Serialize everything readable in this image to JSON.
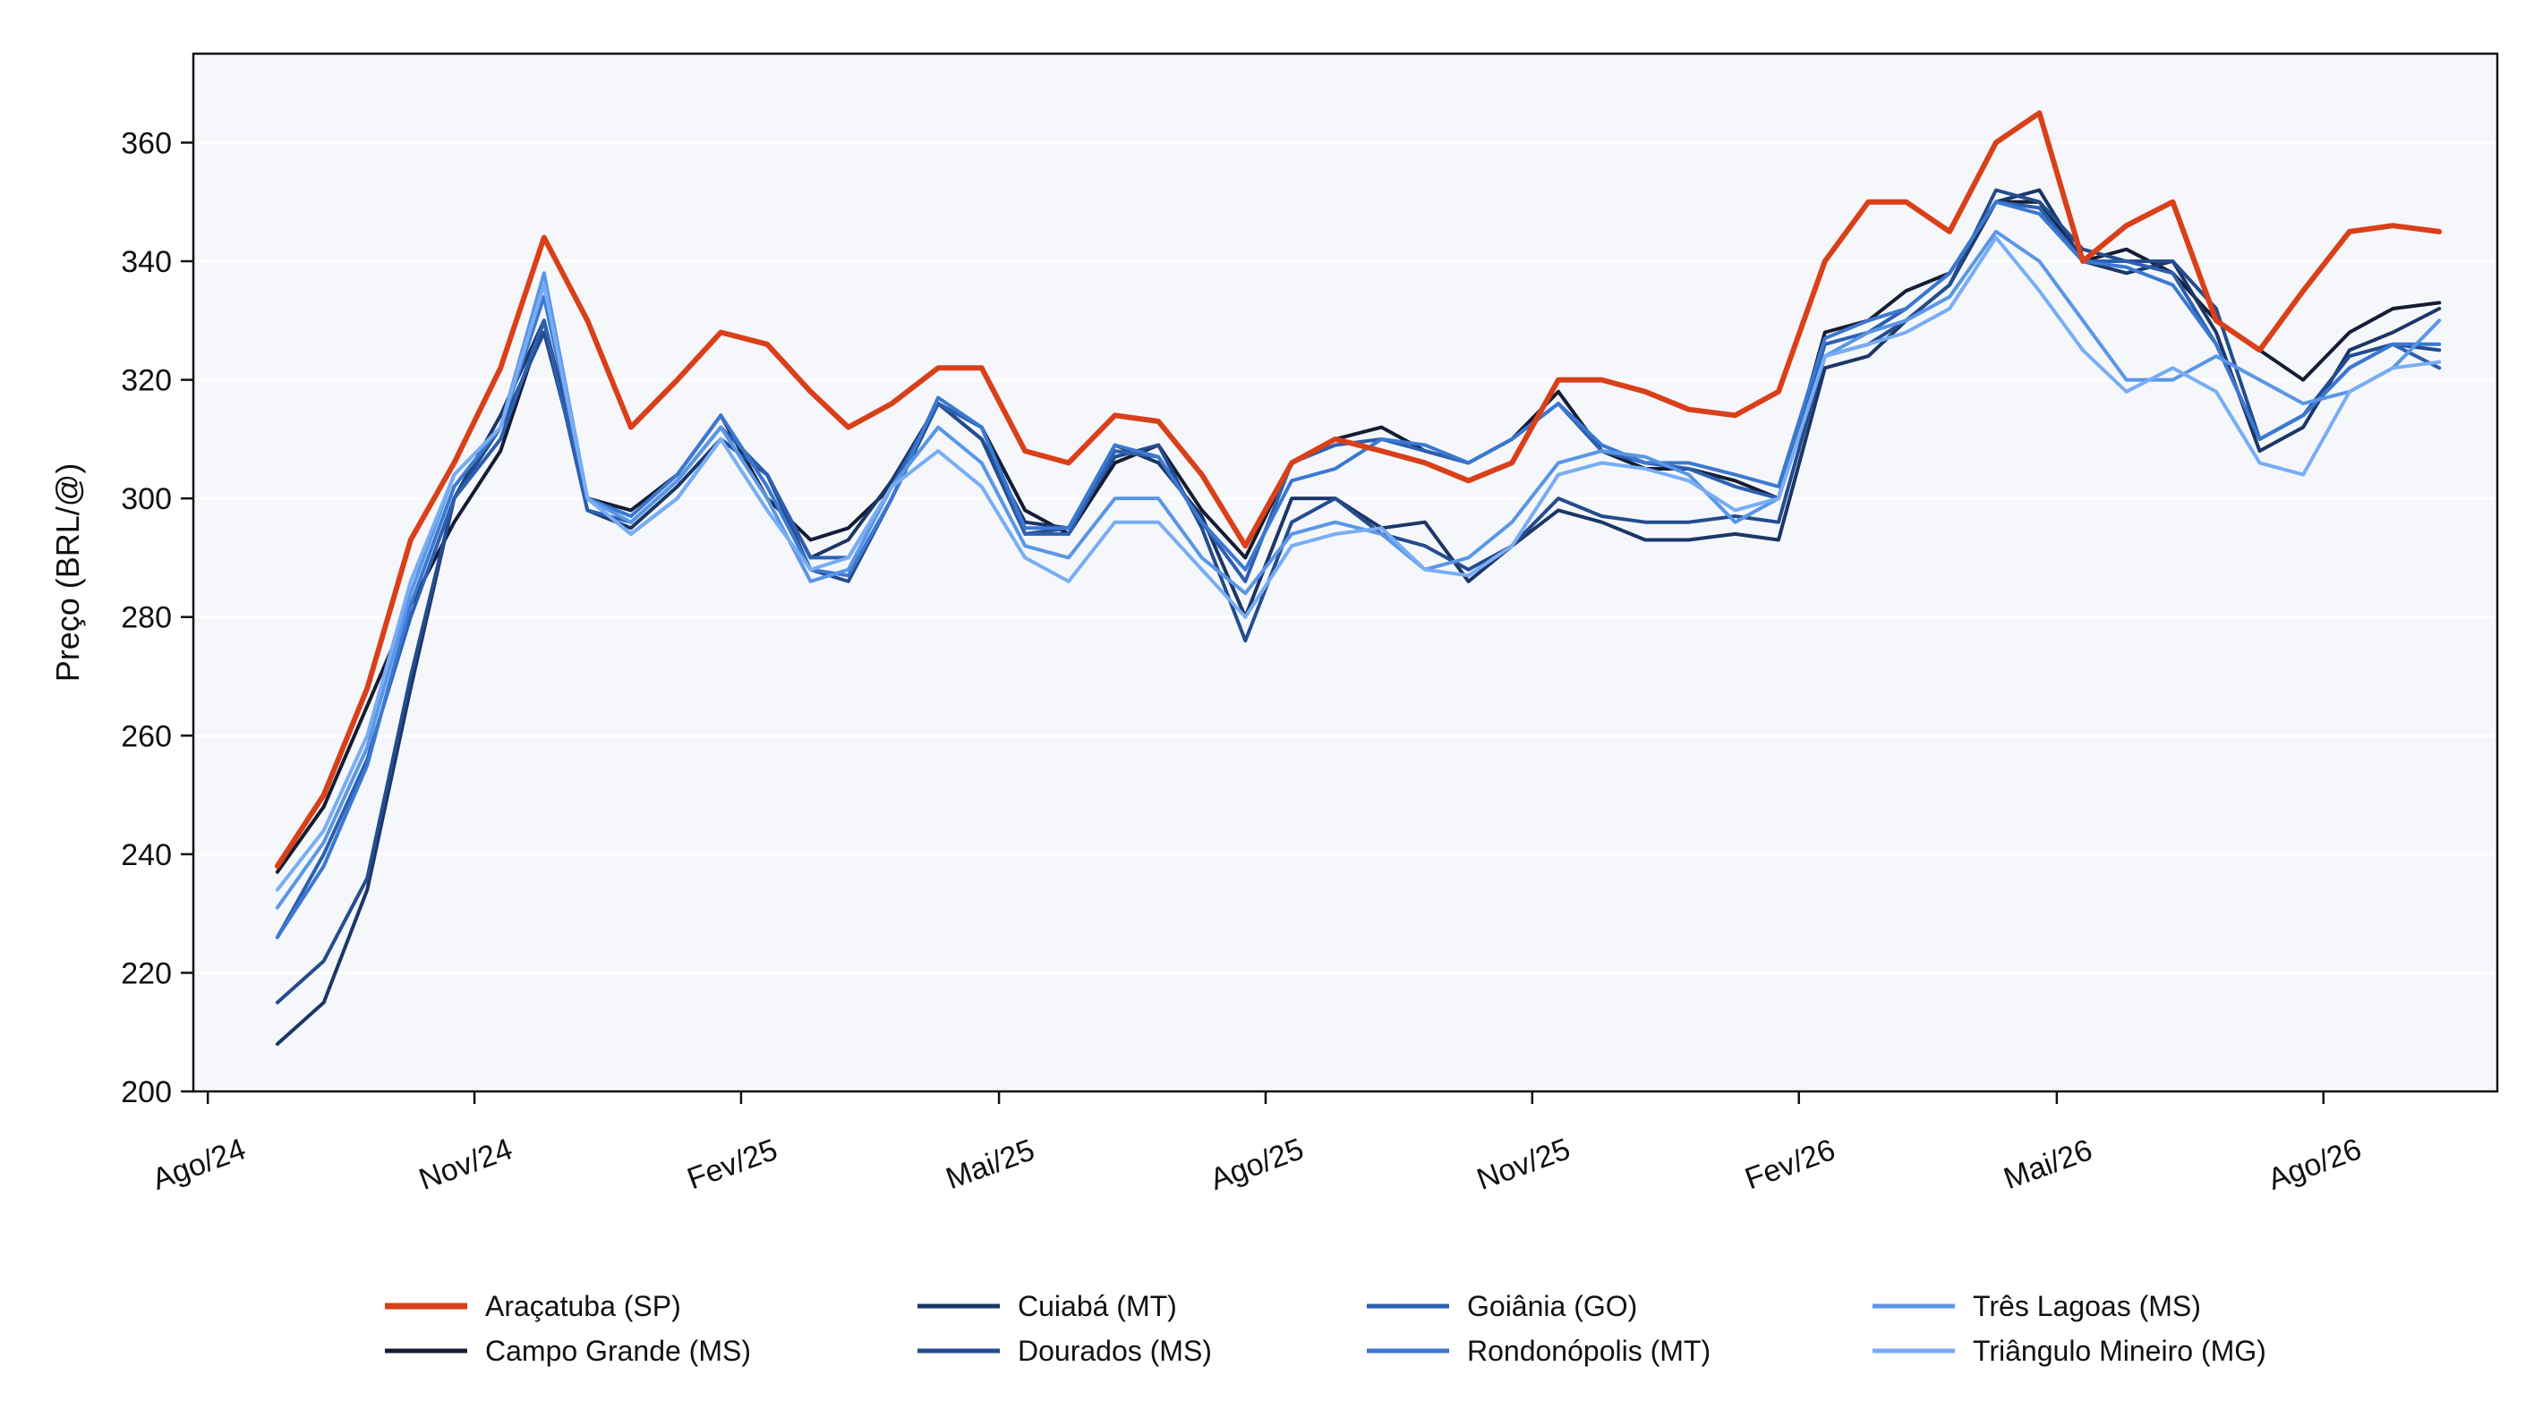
{
  "chart_data": {
    "type": "line",
    "title": "",
    "xlabel": "",
    "ylabel": "Preço (BRL/@)",
    "ylim": [
      200,
      375
    ],
    "xlim": [
      "2024-07-27",
      "2026-09-30"
    ],
    "yticks": [
      200,
      220,
      240,
      260,
      280,
      300,
      320,
      340,
      360
    ],
    "xticks": [
      {
        "date": "2024-08-01",
        "label": "Ago/24"
      },
      {
        "date": "2024-11-01",
        "label": "Nov/24"
      },
      {
        "date": "2025-02-01",
        "label": "Fev/25"
      },
      {
        "date": "2025-05-01",
        "label": "Mai/25"
      },
      {
        "date": "2025-08-01",
        "label": "Ago/25"
      },
      {
        "date": "2025-11-01",
        "label": "Nov/25"
      },
      {
        "date": "2026-02-01",
        "label": "Fev/26"
      },
      {
        "date": "2026-05-01",
        "label": "Mai/26"
      },
      {
        "date": "2026-08-01",
        "label": "Ago/26"
      }
    ],
    "grid": "horizontal",
    "legend_position": "bottom",
    "background": "#f5f7fb",
    "dates": [
      "2024-08-25",
      "2024-09-10",
      "2024-09-25",
      "2024-10-10",
      "2024-10-25",
      "2024-11-10",
      "2024-11-25",
      "2024-12-10",
      "2024-12-25",
      "2025-01-10",
      "2025-01-25",
      "2025-02-10",
      "2025-02-25",
      "2025-03-10",
      "2025-03-25",
      "2025-04-10",
      "2025-04-25",
      "2025-05-10",
      "2025-05-25",
      "2025-06-10",
      "2025-06-25",
      "2025-07-10",
      "2025-07-25",
      "2025-08-10",
      "2025-08-25",
      "2025-09-10",
      "2025-09-25",
      "2025-10-10",
      "2025-10-25",
      "2025-11-10",
      "2025-11-25",
      "2025-12-10",
      "2025-12-25",
      "2026-01-10",
      "2026-01-25",
      "2026-02-10",
      "2026-02-25",
      "2026-03-10",
      "2026-03-25",
      "2026-04-10",
      "2026-04-25",
      "2026-05-10",
      "2026-05-25",
      "2026-06-10",
      "2026-06-25",
      "2026-07-10",
      "2026-07-25",
      "2026-08-10",
      "2026-08-25",
      "2026-09-10"
    ],
    "series": [
      {
        "name": "Araçatuba (SP)",
        "color": "#d9401a",
        "width": 6,
        "values": [
          238,
          250,
          268,
          293,
          306,
          322,
          344,
          330,
          312,
          320,
          328,
          326,
          318,
          312,
          316,
          322,
          322,
          308,
          306,
          314,
          313,
          304,
          292,
          306,
          310,
          308,
          306,
          303,
          306,
          320,
          320,
          318,
          315,
          314,
          318,
          340,
          350,
          350,
          345,
          360,
          365,
          340,
          346,
          350,
          330,
          325,
          335,
          345,
          346,
          345
        ]
      },
      {
        "name": "Campo Grande (MS)",
        "color": "#141d33",
        "width": 4,
        "values": [
          237,
          248,
          265,
          282,
          296,
          308,
          330,
          300,
          298,
          304,
          314,
          300,
          293,
          295,
          302,
          316,
          312,
          298,
          294,
          306,
          309,
          298,
          290,
          306,
          310,
          312,
          308,
          306,
          310,
          318,
          308,
          305,
          305,
          303,
          300,
          328,
          330,
          335,
          338,
          350,
          350,
          340,
          342,
          338,
          330,
          325,
          320,
          328,
          332,
          333
        ]
      },
      {
        "name": "Cuiabá (MT)",
        "color": "#1b3667",
        "width": 4,
        "values": [
          208,
          215,
          234,
          268,
          300,
          314,
          330,
          298,
          295,
          302,
          310,
          304,
          290,
          293,
          303,
          316,
          310,
          296,
          295,
          309,
          306,
          297,
          280,
          300,
          300,
          295,
          296,
          286,
          292,
          298,
          296,
          293,
          293,
          294,
          293,
          322,
          324,
          330,
          336,
          350,
          352,
          340,
          338,
          340,
          328,
          308,
          312,
          325,
          328,
          332
        ]
      },
      {
        "name": "Dourados (MS)",
        "color": "#244c8e",
        "width": 4,
        "values": [
          215,
          222,
          236,
          270,
          300,
          312,
          328,
          300,
          294,
          300,
          310,
          304,
          288,
          286,
          300,
          316,
          310,
          294,
          295,
          307,
          309,
          295,
          276,
          296,
          300,
          294,
          292,
          288,
          292,
          300,
          297,
          296,
          296,
          297,
          296,
          324,
          326,
          330,
          336,
          352,
          350,
          342,
          340,
          340,
          332,
          310,
          314,
          324,
          326,
          325
        ]
      },
      {
        "name": "Goiânia (GO)",
        "color": "#2d5fb0",
        "width": 4,
        "values": [
          226,
          240,
          256,
          280,
          300,
          310,
          330,
          298,
          296,
          303,
          312,
          304,
          290,
          290,
          302,
          316,
          312,
          294,
          294,
          308,
          307,
          296,
          286,
          306,
          309,
          310,
          308,
          306,
          310,
          316,
          308,
          306,
          305,
          302,
          300,
          326,
          328,
          332,
          338,
          350,
          349,
          340,
          340,
          338,
          326,
          310,
          314,
          322,
          326,
          322
        ]
      },
      {
        "name": "Rondonópolis (MT)",
        "color": "#3b78d1",
        "width": 4,
        "values": [
          226,
          238,
          255,
          282,
          302,
          312,
          334,
          300,
          297,
          304,
          314,
          302,
          288,
          287,
          300,
          317,
          312,
          295,
          295,
          309,
          307,
          296,
          288,
          303,
          305,
          310,
          309,
          306,
          310,
          316,
          309,
          306,
          306,
          304,
          302,
          327,
          330,
          332,
          338,
          350,
          348,
          340,
          339,
          336,
          326,
          310,
          314,
          322,
          326,
          326
        ]
      },
      {
        "name": "Três Lagoas (MS)",
        "color": "#5a96e6",
        "width": 4,
        "values": [
          231,
          242,
          258,
          284,
          304,
          312,
          338,
          300,
          296,
          303,
          312,
          300,
          286,
          288,
          302,
          312,
          306,
          292,
          290,
          300,
          300,
          290,
          284,
          294,
          296,
          294,
          288,
          290,
          296,
          306,
          308,
          307,
          304,
          296,
          300,
          324,
          328,
          330,
          334,
          345,
          340,
          330,
          320,
          320,
          324,
          320,
          316,
          318,
          322,
          330
        ]
      },
      {
        "name": "Triângulo Mineiro (MG)",
        "color": "#78adf5",
        "width": 4,
        "values": [
          234,
          244,
          260,
          286,
          304,
          312,
          336,
          300,
          294,
          300,
          310,
          298,
          288,
          290,
          302,
          308,
          302,
          290,
          286,
          296,
          296,
          288,
          280,
          292,
          294,
          295,
          288,
          287,
          292,
          304,
          306,
          305,
          303,
          298,
          300,
          324,
          326,
          328,
          332,
          344,
          335,
          325,
          318,
          322,
          318,
          306,
          304,
          318,
          322,
          323
        ]
      }
    ]
  }
}
